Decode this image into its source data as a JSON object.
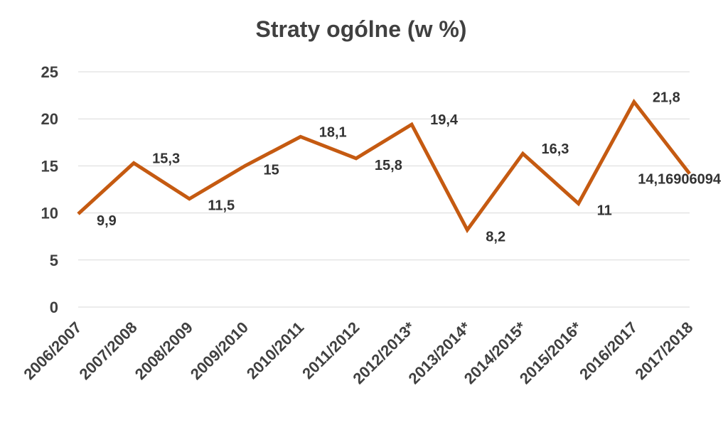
{
  "chart_data": {
    "type": "line",
    "title": "Straty ogólne (w %)",
    "xlabel": "",
    "ylabel": "",
    "ylim": [
      0,
      25
    ],
    "yticks": [
      "0",
      "5",
      "10",
      "15",
      "20",
      "25"
    ],
    "grid": true,
    "legend": "none",
    "categories": [
      "2006/2007",
      "2007/2008",
      "2008/2009",
      "2009/2010",
      "2010/2011",
      "2011/2012",
      "2012/2013*",
      "2013/2014*",
      "2014/2015*",
      "2015/2016*",
      "2016/2017",
      "2017/2018"
    ],
    "series": [
      {
        "name": "Straty ogólne",
        "color": "#C55A11",
        "values": [
          9.9,
          15.3,
          11.5,
          15,
          18.1,
          15.8,
          19.4,
          8.2,
          16.3,
          11,
          21.8,
          14.16906094
        ],
        "labels": [
          "9,9",
          "15,3",
          "11,5",
          "15",
          "18,1",
          "15,8",
          "19,4",
          "8,2",
          "16,3",
          "11",
          "21,8",
          "14,16906094"
        ]
      }
    ]
  }
}
